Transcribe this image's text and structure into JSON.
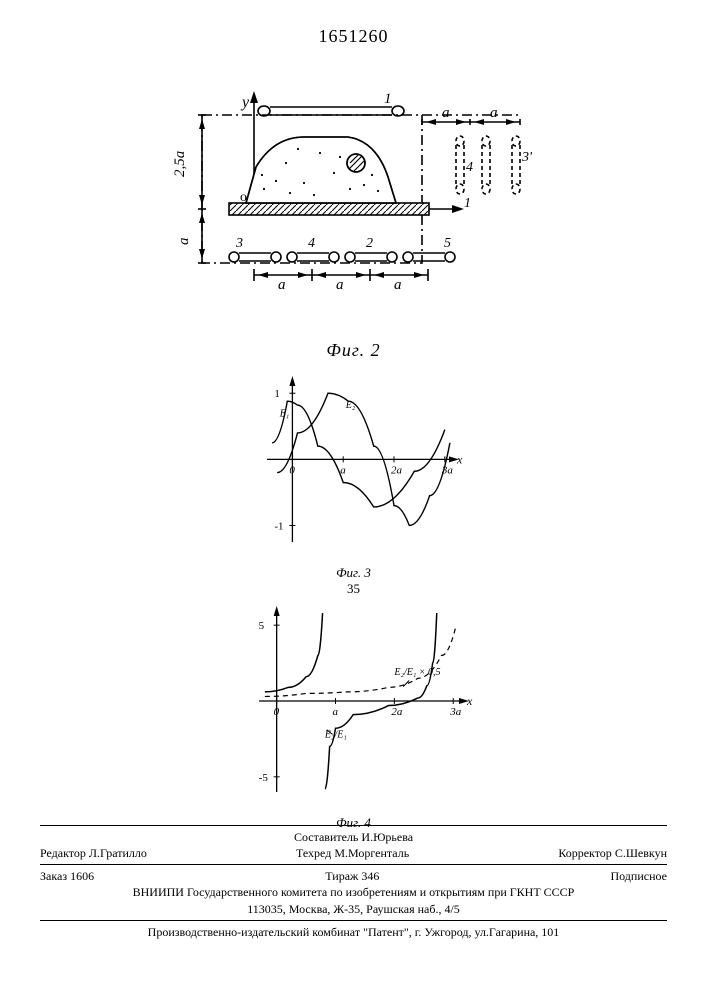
{
  "doc_number": "1651260",
  "figures": {
    "fig2": {
      "caption": "Фиг. 2",
      "labels": {
        "y": "y",
        "x_arrow": "→",
        "o": "о",
        "top_rod": "1",
        "side_a1": "a",
        "side_a2": "a",
        "side_idx_4": "4",
        "side_idx_3p": "3'",
        "side_idx_1": "1",
        "dim_left_bottom": "a",
        "dim_left_top": "2,5a",
        "btm_3": "3",
        "btm_4": "4",
        "btm_2": "2",
        "btm_5": "5",
        "btm_a1": "a",
        "btm_a2": "a",
        "btm_a3": "a"
      },
      "colors": {
        "stroke": "#000",
        "fill_hatched": "#000",
        "dash": "#000",
        "bg": "#fff"
      }
    },
    "fig3": {
      "caption": "Фиг. 3",
      "sub": "35",
      "xlim": [
        -0.5,
        3.2
      ],
      "ylim": [
        -1.25,
        1.2
      ],
      "xticks": [
        "0",
        "a",
        "2a",
        "3a"
      ],
      "yticks": [
        "1",
        "-1"
      ],
      "labels": {
        "E1": "E₁",
        "E2": "E₂"
      },
      "series": {
        "E1": {
          "color": "#000",
          "width": 1.4,
          "pts": [
            [
              -0.4,
              0.25
            ],
            [
              -0.1,
              0.88
            ],
            [
              0.1,
              0.82
            ],
            [
              0.5,
              0.2
            ],
            [
              1.0,
              -0.35
            ],
            [
              1.6,
              -0.72
            ],
            [
              2.4,
              -0.18
            ],
            [
              3.0,
              0.45
            ]
          ]
        },
        "E2": {
          "color": "#000",
          "width": 1.4,
          "pts": [
            [
              -0.3,
              -0.2
            ],
            [
              0.1,
              0.4
            ],
            [
              0.7,
              1.0
            ],
            [
              1.1,
              0.88
            ],
            [
              1.6,
              0.2
            ],
            [
              2.0,
              -0.7
            ],
            [
              2.3,
              -1.0
            ],
            [
              2.7,
              -0.55
            ],
            [
              3.1,
              0.25
            ]
          ]
        }
      }
    },
    "fig4": {
      "caption": "Фиг. 4",
      "xlim": [
        -0.3,
        3.2
      ],
      "ylim": [
        -6,
        6
      ],
      "xticks": [
        "0",
        "a",
        "2a",
        "3a"
      ],
      "yticks": [
        "5",
        "-5"
      ],
      "labels": {
        "ratio": "E₂/E₁",
        "ratio_scaled": "E₂/E₁ × 0,5"
      },
      "series": {
        "ratio_left": {
          "color": "#000",
          "width": 1.5,
          "pts": [
            [
              -0.2,
              0.6
            ],
            [
              0.2,
              0.9
            ],
            [
              0.5,
              1.6
            ],
            [
              0.7,
              3.0
            ],
            [
              0.78,
              5.8
            ]
          ]
        },
        "ratio_right_neg": {
          "color": "#000",
          "width": 1.5,
          "pts": [
            [
              0.82,
              -5.8
            ],
            [
              0.9,
              -3.0
            ],
            [
              1.0,
              -1.8
            ],
            [
              1.3,
              -0.9
            ],
            [
              1.9,
              -0.3
            ],
            [
              2.4,
              0.2
            ]
          ]
        },
        "ratio_right_up": {
          "color": "#000",
          "width": 1.5,
          "pts": [
            [
              2.4,
              0.2
            ],
            [
              2.55,
              1.0
            ],
            [
              2.65,
              2.5
            ],
            [
              2.72,
              5.8
            ]
          ]
        },
        "scaled": {
          "color": "#000",
          "width": 1.2,
          "dash": "5,4",
          "pts": [
            [
              -0.2,
              0.3
            ],
            [
              0.5,
              0.5
            ],
            [
              1.2,
              0.6
            ],
            [
              1.9,
              0.9
            ],
            [
              2.4,
              1.5
            ],
            [
              2.8,
              3.0
            ],
            [
              3.05,
              5.0
            ]
          ]
        }
      }
    }
  },
  "credits": {
    "compiler_lbl": "Составитель",
    "compiler": "И.Юрьева",
    "editor_lbl": "Редактор",
    "editor": "Л.Гратилло",
    "techred_lbl": "Техред",
    "techred": "М.Моргенталь",
    "corrector_lbl": "Корректор",
    "corrector": "С.Шевкун",
    "order_lbl": "Заказ",
    "order": "1606",
    "tirage_lbl": "Тираж",
    "tirage": "346",
    "subscr": "Подписное",
    "org": "ВНИИПИ Государственного комитета по изобретениям и открытиям при ГКНТ СССР",
    "addr": "113035, Москва, Ж-35, Раушская наб., 4/5",
    "printer": "Производственно-издательский комбинат \"Патент\", г. Ужгород, ул.Гагарина, 101"
  }
}
